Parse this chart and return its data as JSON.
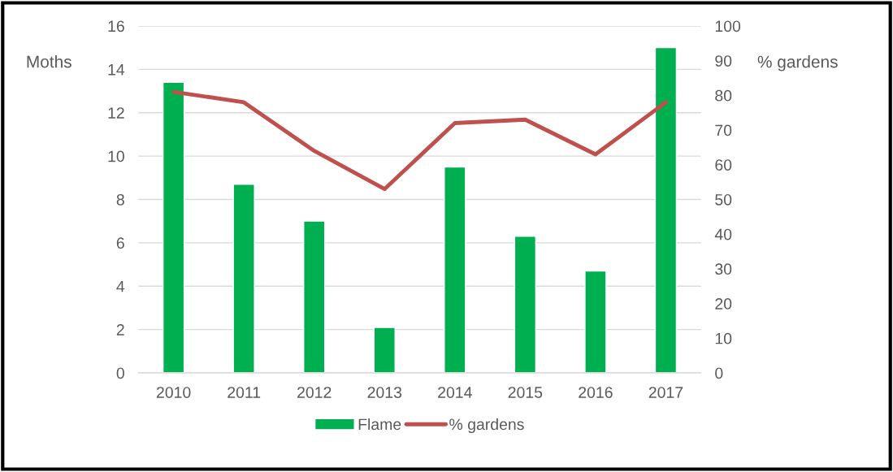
{
  "chart_data": {
    "type": "bar",
    "categories": [
      "2010",
      "2011",
      "2012",
      "2013",
      "2014",
      "2015",
      "2016",
      "2017"
    ],
    "series": [
      {
        "name": "Flame",
        "color": "#00b050",
        "values": [
          13.4,
          8.7,
          7.0,
          2.1,
          9.5,
          6.3,
          4.7,
          15.0
        ]
      },
      {
        "name": "% gardens",
        "type": "line",
        "axis": "y2",
        "color": "#c0504d",
        "values": [
          81,
          78,
          64,
          53,
          72,
          73,
          63,
          78
        ]
      }
    ],
    "ylabel": "Moths",
    "y2label": "% gardens",
    "ylim": [
      0,
      16
    ],
    "yticks": [
      0,
      2,
      4,
      6,
      8,
      10,
      12,
      14,
      16
    ],
    "y2lim": [
      0,
      100
    ],
    "y2ticks": [
      0,
      10,
      20,
      30,
      40,
      50,
      60,
      70,
      80,
      90,
      100
    ],
    "grid": "y",
    "legend": "bottom",
    "marker": "none",
    "line_style": "solid"
  }
}
